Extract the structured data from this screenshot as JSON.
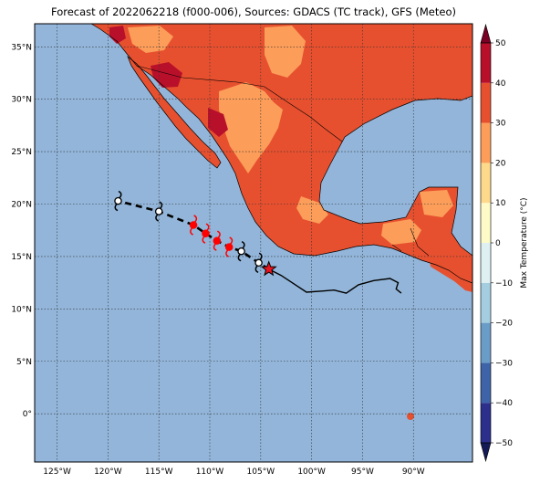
{
  "title": "Forecast of 2022062218 (f000-006), Sources: GDACS (TC track), GFS (Meteo)",
  "axes": {
    "lon_ticks": [
      {
        "value": -125,
        "label": "125°W"
      },
      {
        "value": -120,
        "label": "120°W"
      },
      {
        "value": -115,
        "label": "115°W"
      },
      {
        "value": -110,
        "label": "110°W"
      },
      {
        "value": -105,
        "label": "105°W"
      },
      {
        "value": -100,
        "label": "100°W"
      },
      {
        "value": -95,
        "label": "95°W"
      },
      {
        "value": -90,
        "label": "90°W"
      }
    ],
    "lat_ticks": [
      {
        "value": 35,
        "label": "35°N"
      },
      {
        "value": 30,
        "label": "30°N"
      },
      {
        "value": 25,
        "label": "25°N"
      },
      {
        "value": 20,
        "label": "20°N"
      },
      {
        "value": 15,
        "label": "15°N"
      },
      {
        "value": 10,
        "label": "10°N"
      },
      {
        "value": 5,
        "label": "5°N"
      },
      {
        "value": 0,
        "label": "0°"
      }
    ],
    "lon_range": [
      -127.2,
      -84.2
    ],
    "lat_range": [
      -4.6,
      37.2
    ]
  },
  "colorbar": {
    "label": "Max Temperature (°C)",
    "ticks": [
      "50",
      "40",
      "30",
      "20",
      "10",
      "0",
      "−10",
      "−20",
      "−30",
      "−40",
      "−50"
    ],
    "levels": [
      -50,
      -40,
      -30,
      -20,
      -10,
      0,
      10,
      20,
      30,
      40,
      50
    ],
    "colors": [
      "#2c2f8c",
      "#3e63a8",
      "#6a9cc8",
      "#a5cde0",
      "#dff0f3",
      "#fefbc9",
      "#fdd98c",
      "#fc9d59",
      "#e7502f",
      "#b8102a"
    ],
    "extend_low": "#131a55",
    "extend_high": "#7a0024"
  },
  "colors": {
    "ocean": "#92b5d9",
    "land_low": "#e7502f",
    "land_mid": "#fc9d59",
    "land_high": "#b8102a",
    "track_past": "#000000",
    "storm_forecast": "#ff0000",
    "storm_past": "#000000"
  },
  "track": {
    "observed_path": [
      [
        -104.2,
        13.8
      ],
      [
        -103,
        13.2
      ],
      [
        -101.6,
        12.3
      ],
      [
        -100.5,
        11.6
      ],
      [
        -99,
        11.7
      ],
      [
        -97.8,
        11.8
      ],
      [
        -96.6,
        11.5
      ],
      [
        -95.4,
        12.3
      ],
      [
        -93.9,
        12.7
      ],
      [
        -92.3,
        12.9
      ],
      [
        -91.5,
        12.5
      ],
      [
        -91.7,
        11.9
      ],
      [
        -91.2,
        11.5
      ]
    ],
    "forecast_path": [
      [
        -104.2,
        13.8
      ],
      [
        -105.2,
        14.4
      ],
      [
        -106.9,
        15.5
      ],
      [
        -108.1,
        15.9
      ],
      [
        -109.3,
        16.5
      ],
      [
        -110.4,
        17.2
      ],
      [
        -111.6,
        18
      ],
      [
        -115,
        19.3
      ],
      [
        -119,
        20.3
      ]
    ],
    "current_position": [
      -104.2,
      13.8
    ],
    "forecast_points": [
      {
        "lon": -105.2,
        "lat": 14.4,
        "kind": "past"
      },
      {
        "lon": -106.9,
        "lat": 15.5,
        "kind": "past"
      },
      {
        "lon": -108.1,
        "lat": 15.9,
        "kind": "forecast"
      },
      {
        "lon": -109.3,
        "lat": 16.5,
        "kind": "forecast"
      },
      {
        "lon": -110.4,
        "lat": 17.2,
        "kind": "forecast"
      },
      {
        "lon": -111.6,
        "lat": 18.0,
        "kind": "forecast"
      },
      {
        "lon": -115.0,
        "lat": 19.3,
        "kind": "past"
      },
      {
        "lon": -119.0,
        "lat": 20.3,
        "kind": "past"
      }
    ]
  }
}
